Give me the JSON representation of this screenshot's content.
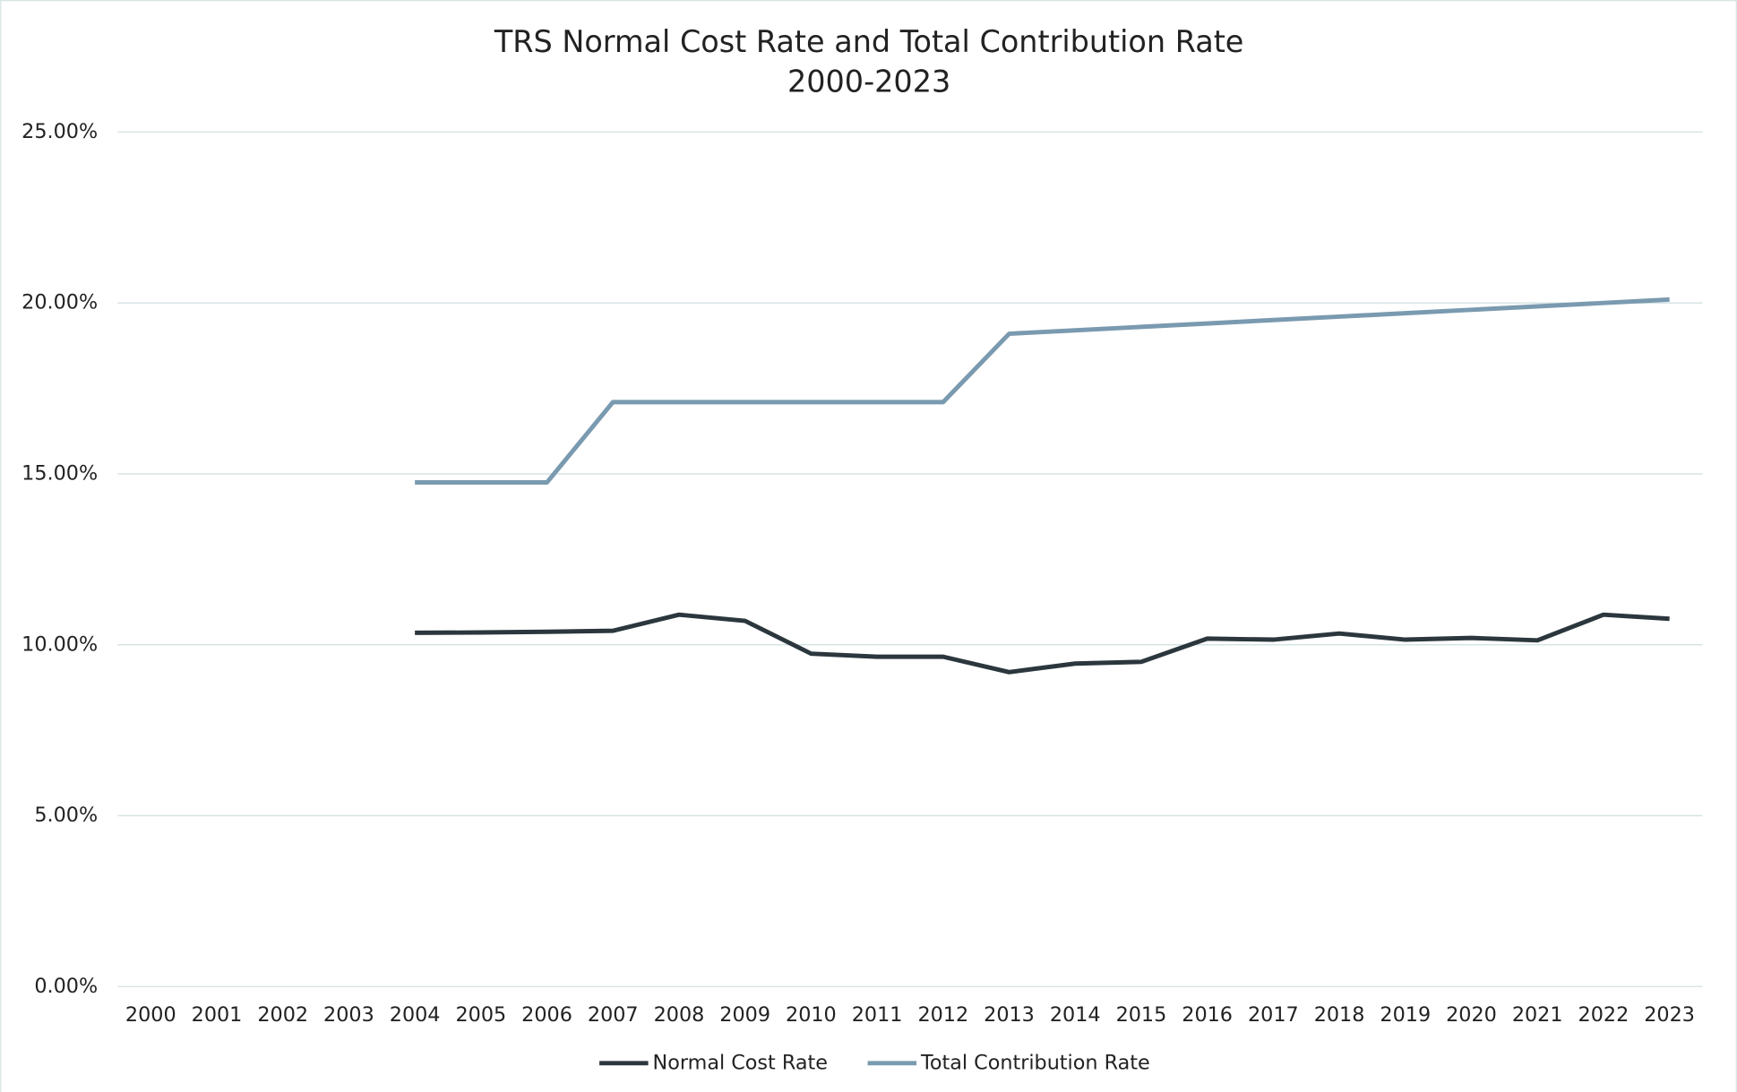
{
  "chart_data": {
    "type": "line",
    "title": "TRS Normal Cost Rate and Total Contribution Rate",
    "subtitle": "2000-2023",
    "categories": [
      "2000",
      "2001",
      "2002",
      "2003",
      "2004",
      "2005",
      "2006",
      "2007",
      "2008",
      "2009",
      "2010",
      "2011",
      "2012",
      "2013",
      "2014",
      "2015",
      "2016",
      "2017",
      "2018",
      "2019",
      "2020",
      "2021",
      "2022",
      "2023"
    ],
    "series": [
      {
        "name": "Normal Cost Rate",
        "color": "#2b373d",
        "values": [
          null,
          null,
          null,
          null,
          10.35,
          10.36,
          10.38,
          10.41,
          10.88,
          10.7,
          9.74,
          9.65,
          9.65,
          9.2,
          9.45,
          9.5,
          10.18,
          10.15,
          10.33,
          10.15,
          10.2,
          10.13,
          10.88,
          10.76
        ]
      },
      {
        "name": "Total Contribution Rate",
        "color": "#7a9ab0",
        "values": [
          null,
          null,
          null,
          null,
          14.75,
          14.75,
          14.75,
          17.1,
          17.1,
          17.1,
          17.1,
          17.1,
          17.1,
          19.1,
          19.2,
          19.3,
          19.4,
          19.5,
          19.6,
          19.7,
          19.8,
          19.9,
          20.0,
          20.1
        ]
      }
    ],
    "ylim": [
      0,
      25
    ],
    "yticks": [
      {
        "value": 0,
        "label": "0.00%"
      },
      {
        "value": 5,
        "label": "5.00%"
      },
      {
        "value": 10,
        "label": "10.00%"
      },
      {
        "value": 15,
        "label": "15.00%"
      },
      {
        "value": 20,
        "label": "20.00%"
      },
      {
        "value": 25,
        "label": "25.00%"
      }
    ],
    "grid": true,
    "legend": "bottom"
  }
}
